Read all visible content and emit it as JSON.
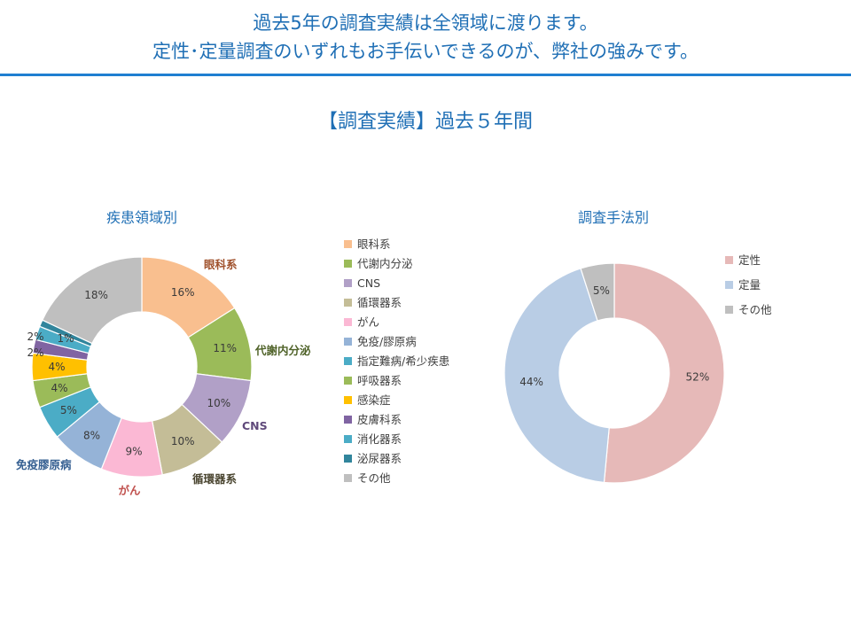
{
  "header": {
    "line1": "過去5年の調査実績は全領域に渡ります。",
    "line2": "定性･定量調査のいずれもお手伝いできるのが、弊社の強みです。"
  },
  "section_title": "【調査実績】過去５年間",
  "colors": {
    "heading": "#1f6fb5",
    "rule": "#1f7fd1"
  },
  "chart_data": [
    {
      "type": "pie",
      "donut": true,
      "title": "疾患領域別",
      "categories": [
        "眼科系",
        "代謝内分泌",
        "CNS",
        "循環器系",
        "がん",
        "免疫/膠原病",
        "指定難病/希少疾患",
        "呼吸器系",
        "感染症",
        "皮膚科系",
        "消化器系",
        "泌尿器系",
        "その他"
      ],
      "values": [
        16,
        11,
        10,
        10,
        9,
        8,
        5,
        4,
        4,
        2,
        2,
        1,
        18
      ],
      "labels": [
        "16%",
        "11%",
        "10%",
        "10%",
        "9%",
        "8%",
        "5%",
        "4%",
        "4%",
        "2%",
        "2%",
        "1%",
        "18%"
      ],
      "colors": [
        "#f9bf8f",
        "#9bbb59",
        "#b1a0c7",
        "#c4bd97",
        "#fbb8d4",
        "#95b3d7",
        "#4bacc6",
        "#9bbb59",
        "#ffc000",
        "#8064a2",
        "#4bacc6",
        "#31859c",
        "#bfbfbf"
      ],
      "callouts": [
        {
          "text": "眼科系",
          "color": "#a0522d"
        },
        {
          "text": "代謝内分泌",
          "color": "#4f6228"
        },
        {
          "text": "CNS",
          "color": "#5f497a"
        },
        {
          "text": "循環器系",
          "color": "#4a4530"
        },
        {
          "text": "がん",
          "color": "#c0504d"
        },
        {
          "text": "免疫膠原病",
          "color": "#366092"
        }
      ],
      "legend_position": "right"
    },
    {
      "type": "pie",
      "donut": true,
      "title": "調査手法別",
      "categories": [
        "定性",
        "定量",
        "その他"
      ],
      "values": [
        52,
        44,
        5
      ],
      "labels": [
        "52%",
        "44%",
        "5%"
      ],
      "colors": [
        "#e6b9b8",
        "#b9cde5",
        "#bfbfbf"
      ],
      "legend_position": "right"
    }
  ]
}
